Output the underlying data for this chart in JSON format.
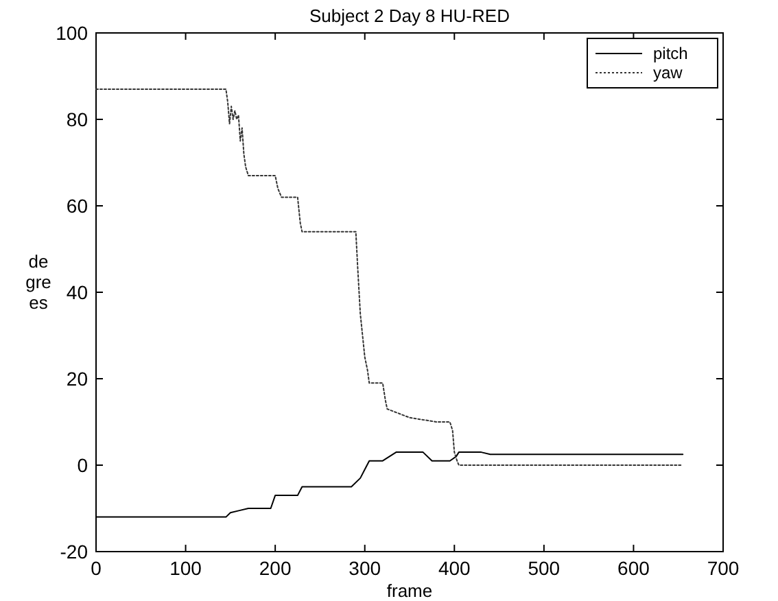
{
  "chart_data": {
    "type": "line",
    "title": "Subject 2 Day 8 HU-RED",
    "xlabel": "frame",
    "ylabel": "de gre es",
    "xlim": [
      0,
      700
    ],
    "xticks": [
      0,
      100,
      200,
      300,
      400,
      500,
      600,
      700
    ],
    "ylim": [
      -20,
      100
    ],
    "yticks": [
      -20,
      0,
      20,
      40,
      60,
      80,
      100
    ],
    "grid": false,
    "legend": "top right",
    "series": [
      {
        "name": "pitch",
        "color": "#000000",
        "line_style": "solid",
        "x": [
          0,
          145,
          150,
          160,
          170,
          195,
          200,
          225,
          230,
          285,
          295,
          300,
          305,
          320,
          335,
          365,
          375,
          395,
          402,
          405,
          430,
          440,
          655
        ],
        "values": [
          -12,
          -12,
          -11,
          -10.5,
          -10,
          -10,
          -7,
          -7,
          -5,
          -5,
          -3,
          -1,
          1,
          1,
          3,
          3,
          1,
          1,
          2,
          3,
          3,
          2.5,
          2.5
        ]
      },
      {
        "name": "yaw",
        "color": "#333333",
        "line_style": "dotted",
        "x": [
          0,
          145,
          147,
          149,
          151,
          153,
          155,
          157,
          159,
          161,
          163,
          165,
          167,
          170,
          172,
          200,
          203,
          207,
          210,
          225,
          228,
          230,
          290,
          292,
          295,
          297,
          300,
          303,
          305,
          320,
          323,
          325,
          350,
          380,
          395,
          398,
          400,
          403,
          405,
          655
        ],
        "values": [
          87,
          87,
          84,
          79,
          83,
          80,
          82,
          80,
          81,
          75,
          78,
          72,
          69,
          67,
          67,
          67,
          64,
          62,
          62,
          62,
          56,
          54,
          54,
          46,
          35,
          31,
          25,
          22,
          19,
          19,
          15,
          13,
          11,
          10,
          10,
          8,
          3,
          1,
          0,
          0
        ]
      }
    ]
  }
}
